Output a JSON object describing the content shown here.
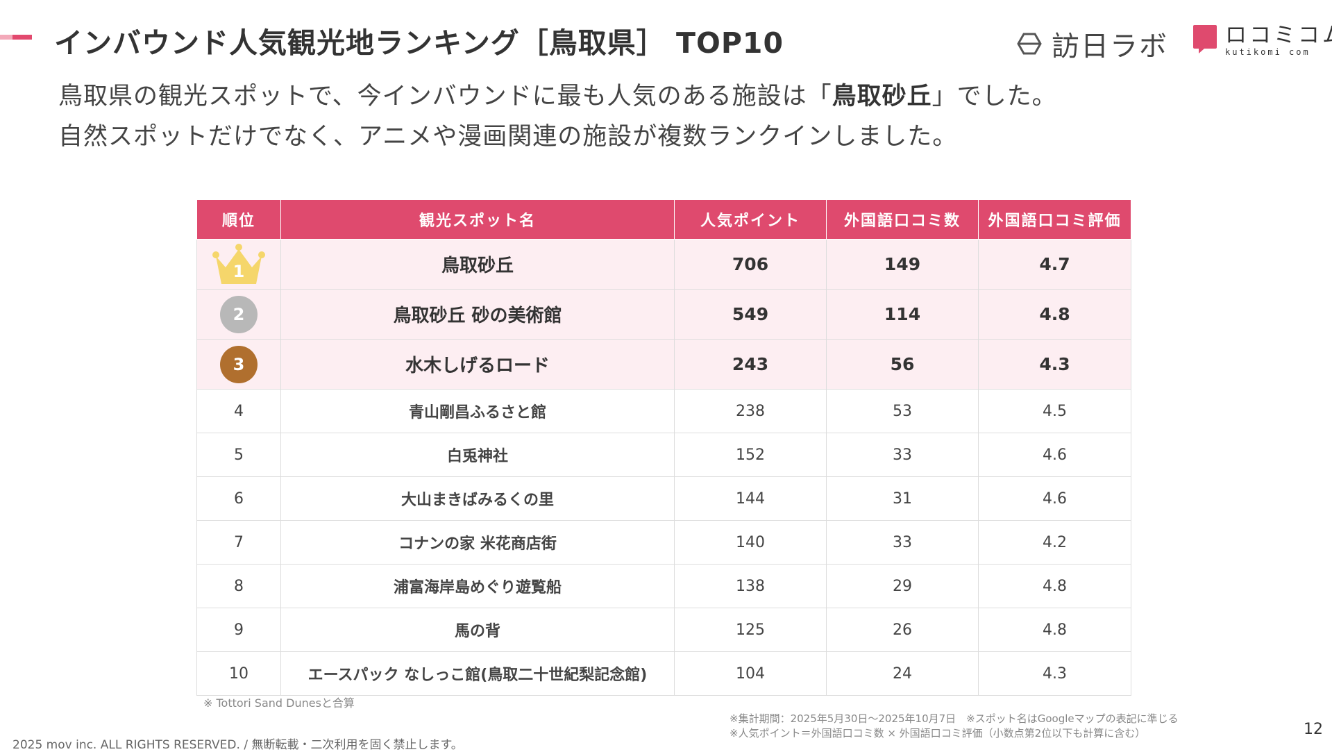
{
  "header": {
    "title": "インバウンド人気観光地ランキング［鳥取県］ TOP10",
    "logo_primary": "訪日ラボ",
    "logo_secondary": "ロコミコム",
    "logo_secondary_sub": "kutikomi com"
  },
  "subtitle": {
    "line1_before": "鳥取県の観光スポットで、今インバウンドに最も人気のある施設は「",
    "line1_highlight": "鳥取砂丘",
    "line1_after": "」でした。",
    "line2": "自然スポットだけでなく、アニメや漫画関連の施設が複数ランクインしました。"
  },
  "table": {
    "headers": [
      "順位",
      "観光スポット名",
      "人気ポイント",
      "外国語口コミ数",
      "外国語口コミ評価"
    ],
    "rows": [
      {
        "rank": "1",
        "name": "鳥取砂丘",
        "points": "706",
        "reviews": "149",
        "rating": "4.7"
      },
      {
        "rank": "2",
        "name": "鳥取砂丘 砂の美術館",
        "points": "549",
        "reviews": "114",
        "rating": "4.8"
      },
      {
        "rank": "3",
        "name": "水木しげるロード",
        "points": "243",
        "reviews": "56",
        "rating": "4.3"
      },
      {
        "rank": "4",
        "name": "青山剛昌ふるさと館",
        "points": "238",
        "reviews": "53",
        "rating": "4.5"
      },
      {
        "rank": "5",
        "name": "白兎神社",
        "points": "152",
        "reviews": "33",
        "rating": "4.6"
      },
      {
        "rank": "6",
        "name": "大山まきばみるくの里",
        "points": "144",
        "reviews": "31",
        "rating": "4.6"
      },
      {
        "rank": "7",
        "name": "コナンの家 米花商店街",
        "points": "140",
        "reviews": "33",
        "rating": "4.2"
      },
      {
        "rank": "8",
        "name": "浦富海岸島めぐり遊覧船",
        "points": "138",
        "reviews": "29",
        "rating": "4.8"
      },
      {
        "rank": "9",
        "name": "馬の背",
        "points": "125",
        "reviews": "26",
        "rating": "4.8"
      },
      {
        "rank": "10",
        "name": "エースパック なしっこ館(鳥取二十世紀梨記念館)",
        "points": "104",
        "reviews": "24",
        "rating": "4.3"
      }
    ]
  },
  "notes": {
    "table_note": "※ Tottori Sand Dunesと合算",
    "period_note": "※集計期間：2025年5月30日〜2025年10月7日　※スポット名はGoogleマップの表記に準じる",
    "formula_note": "※人気ポイント＝外国語口コミ数 × 外国語口コミ評価（小数点第2位以下も計算に含む）"
  },
  "footer": {
    "copyright": "2025 mov inc. ALL RIGHTS RESERVED. / 無断転載・二次利用を固く禁止します。",
    "page_number": "12"
  },
  "colors": {
    "accent": "#df4a6e",
    "top_row_bg": "#fdeef2",
    "gold": "#f5d66b",
    "silver": "#b8b8b8",
    "bronze": "#b06f2e"
  },
  "icons": [
    "crown-icon",
    "silver-badge-icon",
    "bronze-badge-icon",
    "houjin-labo-logo-icon",
    "kutikomi-logo-icon"
  ]
}
